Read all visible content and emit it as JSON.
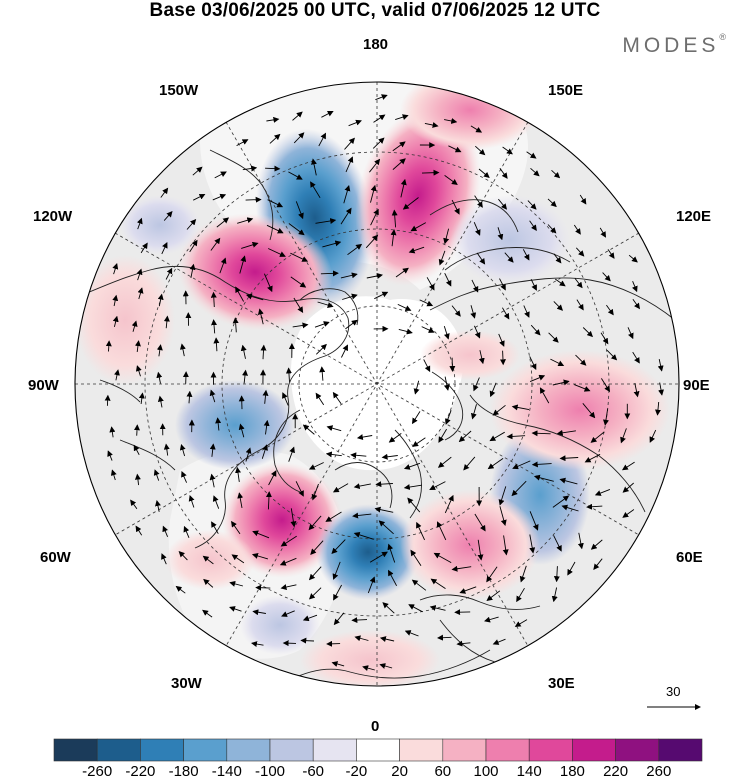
{
  "title": "Base 03/06/2025 00 UTC, valid 07/06/2025 12 UTC",
  "brand": "MODES",
  "brand_mark": "®",
  "longitude_labels": {
    "top": "180",
    "bottom": "0",
    "left": "90W",
    "right": "90E",
    "upper_left_1": "150W",
    "upper_left_2": "120W",
    "upper_right_1": "150E",
    "upper_right_2": "120E",
    "lower_left_1": "60W",
    "lower_left_2": "30W",
    "lower_right_1": "60E",
    "lower_right_2": "30E"
  },
  "vector_scale": {
    "label": "30"
  },
  "colorbar": {
    "ticks": [
      "-260",
      "-220",
      "-180",
      "-140",
      "-100",
      "-60",
      "-20",
      "20",
      "60",
      "100",
      "140",
      "180",
      "220",
      "260"
    ],
    "colors": [
      "#1b3b5a",
      "#1d5d8c",
      "#2f7fb6",
      "#5a9fce",
      "#8fb4d9",
      "#bcc6e2",
      "#e6e4f1",
      "#ffffff",
      "#fadcdc",
      "#f5b1c3",
      "#ee7fae",
      "#e0489b",
      "#c41c8c",
      "#8f1180",
      "#560a70"
    ]
  },
  "anomaly_centers": [
    {
      "sign": "negative",
      "strength": "strong",
      "region": "North Pacific near 180"
    },
    {
      "sign": "positive",
      "strength": "strong",
      "region": "Alaska / Gulf of Alaska"
    },
    {
      "sign": "positive",
      "strength": "strong",
      "region": "North-east Pacific / West Russia-Kamchatka"
    },
    {
      "sign": "positive",
      "strength": "strong",
      "region": "North Atlantic near Greenland south"
    },
    {
      "sign": "negative",
      "strength": "strong",
      "region": "Northwest Europe"
    },
    {
      "sign": "negative",
      "strength": "moderate",
      "region": "Central Asia"
    }
  ]
}
